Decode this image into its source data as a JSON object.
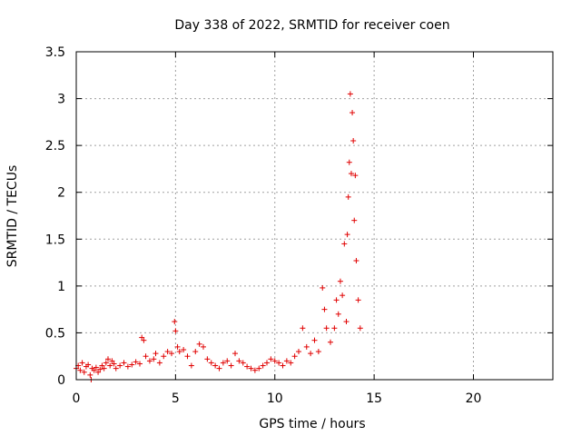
{
  "chart_data": {
    "type": "scatter",
    "title": "Day 338 of 2022, SRMTID for receiver coen",
    "xlabel": "GPS time / hours",
    "ylabel": "SRMTID / TECUs",
    "xlim": [
      0,
      24
    ],
    "ylim": [
      0,
      3.5
    ],
    "grid": true,
    "marker": "+",
    "color": "#e00000",
    "x_ticks": [
      {
        "value": 0,
        "label": "0"
      },
      {
        "value": 5,
        "label": "5"
      },
      {
        "value": 10,
        "label": "10"
      },
      {
        "value": 15,
        "label": "15"
      },
      {
        "value": 20,
        "label": "20"
      }
    ],
    "y_ticks": [
      {
        "value": 0,
        "label": "0"
      },
      {
        "value": 0.5,
        "label": "0.5"
      },
      {
        "value": 1,
        "label": "1"
      },
      {
        "value": 1.5,
        "label": "1.5"
      },
      {
        "value": 2,
        "label": "2"
      },
      {
        "value": 2.5,
        "label": "2.5"
      },
      {
        "value": 3,
        "label": "3"
      },
      {
        "value": 3.5,
        "label": "3.5"
      }
    ],
    "series": [
      {
        "name": "SRMTID",
        "points": [
          [
            0.0,
            0.12
          ],
          [
            0.1,
            0.15
          ],
          [
            0.2,
            0.1
          ],
          [
            0.3,
            0.18
          ],
          [
            0.4,
            0.08
          ],
          [
            0.5,
            0.14
          ],
          [
            0.6,
            0.16
          ],
          [
            0.7,
            0.05
          ],
          [
            0.75,
            0.0
          ],
          [
            0.8,
            0.12
          ],
          [
            0.9,
            0.1
          ],
          [
            1.0,
            0.13
          ],
          [
            1.1,
            0.08
          ],
          [
            1.2,
            0.11
          ],
          [
            1.3,
            0.15
          ],
          [
            1.4,
            0.12
          ],
          [
            1.5,
            0.18
          ],
          [
            1.6,
            0.22
          ],
          [
            1.7,
            0.15
          ],
          [
            1.8,
            0.2
          ],
          [
            1.9,
            0.17
          ],
          [
            2.0,
            0.12
          ],
          [
            2.2,
            0.15
          ],
          [
            2.4,
            0.18
          ],
          [
            2.6,
            0.14
          ],
          [
            2.8,
            0.16
          ],
          [
            3.0,
            0.19
          ],
          [
            3.2,
            0.17
          ],
          [
            3.3,
            0.45
          ],
          [
            3.4,
            0.42
          ],
          [
            3.5,
            0.25
          ],
          [
            3.7,
            0.2
          ],
          [
            3.9,
            0.22
          ],
          [
            4.0,
            0.28
          ],
          [
            4.2,
            0.18
          ],
          [
            4.4,
            0.25
          ],
          [
            4.6,
            0.3
          ],
          [
            4.8,
            0.28
          ],
          [
            4.95,
            0.62
          ],
          [
            5.0,
            0.52
          ],
          [
            5.1,
            0.35
          ],
          [
            5.2,
            0.3
          ],
          [
            5.4,
            0.32
          ],
          [
            5.6,
            0.25
          ],
          [
            5.8,
            0.15
          ],
          [
            6.0,
            0.3
          ],
          [
            6.2,
            0.38
          ],
          [
            6.4,
            0.35
          ],
          [
            6.6,
            0.22
          ],
          [
            6.8,
            0.18
          ],
          [
            7.0,
            0.15
          ],
          [
            7.2,
            0.12
          ],
          [
            7.4,
            0.18
          ],
          [
            7.6,
            0.2
          ],
          [
            7.8,
            0.15
          ],
          [
            8.0,
            0.28
          ],
          [
            8.2,
            0.2
          ],
          [
            8.4,
            0.18
          ],
          [
            8.6,
            0.14
          ],
          [
            8.8,
            0.12
          ],
          [
            9.0,
            0.1
          ],
          [
            9.2,
            0.12
          ],
          [
            9.4,
            0.15
          ],
          [
            9.6,
            0.18
          ],
          [
            9.8,
            0.22
          ],
          [
            10.0,
            0.2
          ],
          [
            10.2,
            0.18
          ],
          [
            10.4,
            0.15
          ],
          [
            10.6,
            0.2
          ],
          [
            10.8,
            0.18
          ],
          [
            11.0,
            0.25
          ],
          [
            11.2,
            0.3
          ],
          [
            11.4,
            0.55
          ],
          [
            11.6,
            0.35
          ],
          [
            11.8,
            0.28
          ],
          [
            12.0,
            0.42
          ],
          [
            12.2,
            0.3
          ],
          [
            12.4,
            0.98
          ],
          [
            12.5,
            0.75
          ],
          [
            12.6,
            0.55
          ],
          [
            12.8,
            0.4
          ],
          [
            13.0,
            0.55
          ],
          [
            13.1,
            0.85
          ],
          [
            13.2,
            0.7
          ],
          [
            13.3,
            1.05
          ],
          [
            13.4,
            0.9
          ],
          [
            13.5,
            1.45
          ],
          [
            13.6,
            0.62
          ],
          [
            13.65,
            1.55
          ],
          [
            13.7,
            1.95
          ],
          [
            13.75,
            2.32
          ],
          [
            13.8,
            3.05
          ],
          [
            13.85,
            2.2
          ],
          [
            13.9,
            2.85
          ],
          [
            13.95,
            2.55
          ],
          [
            14.0,
            1.7
          ],
          [
            14.05,
            2.18
          ],
          [
            14.1,
            1.27
          ],
          [
            14.2,
            0.85
          ],
          [
            14.3,
            0.55
          ]
        ]
      }
    ]
  }
}
